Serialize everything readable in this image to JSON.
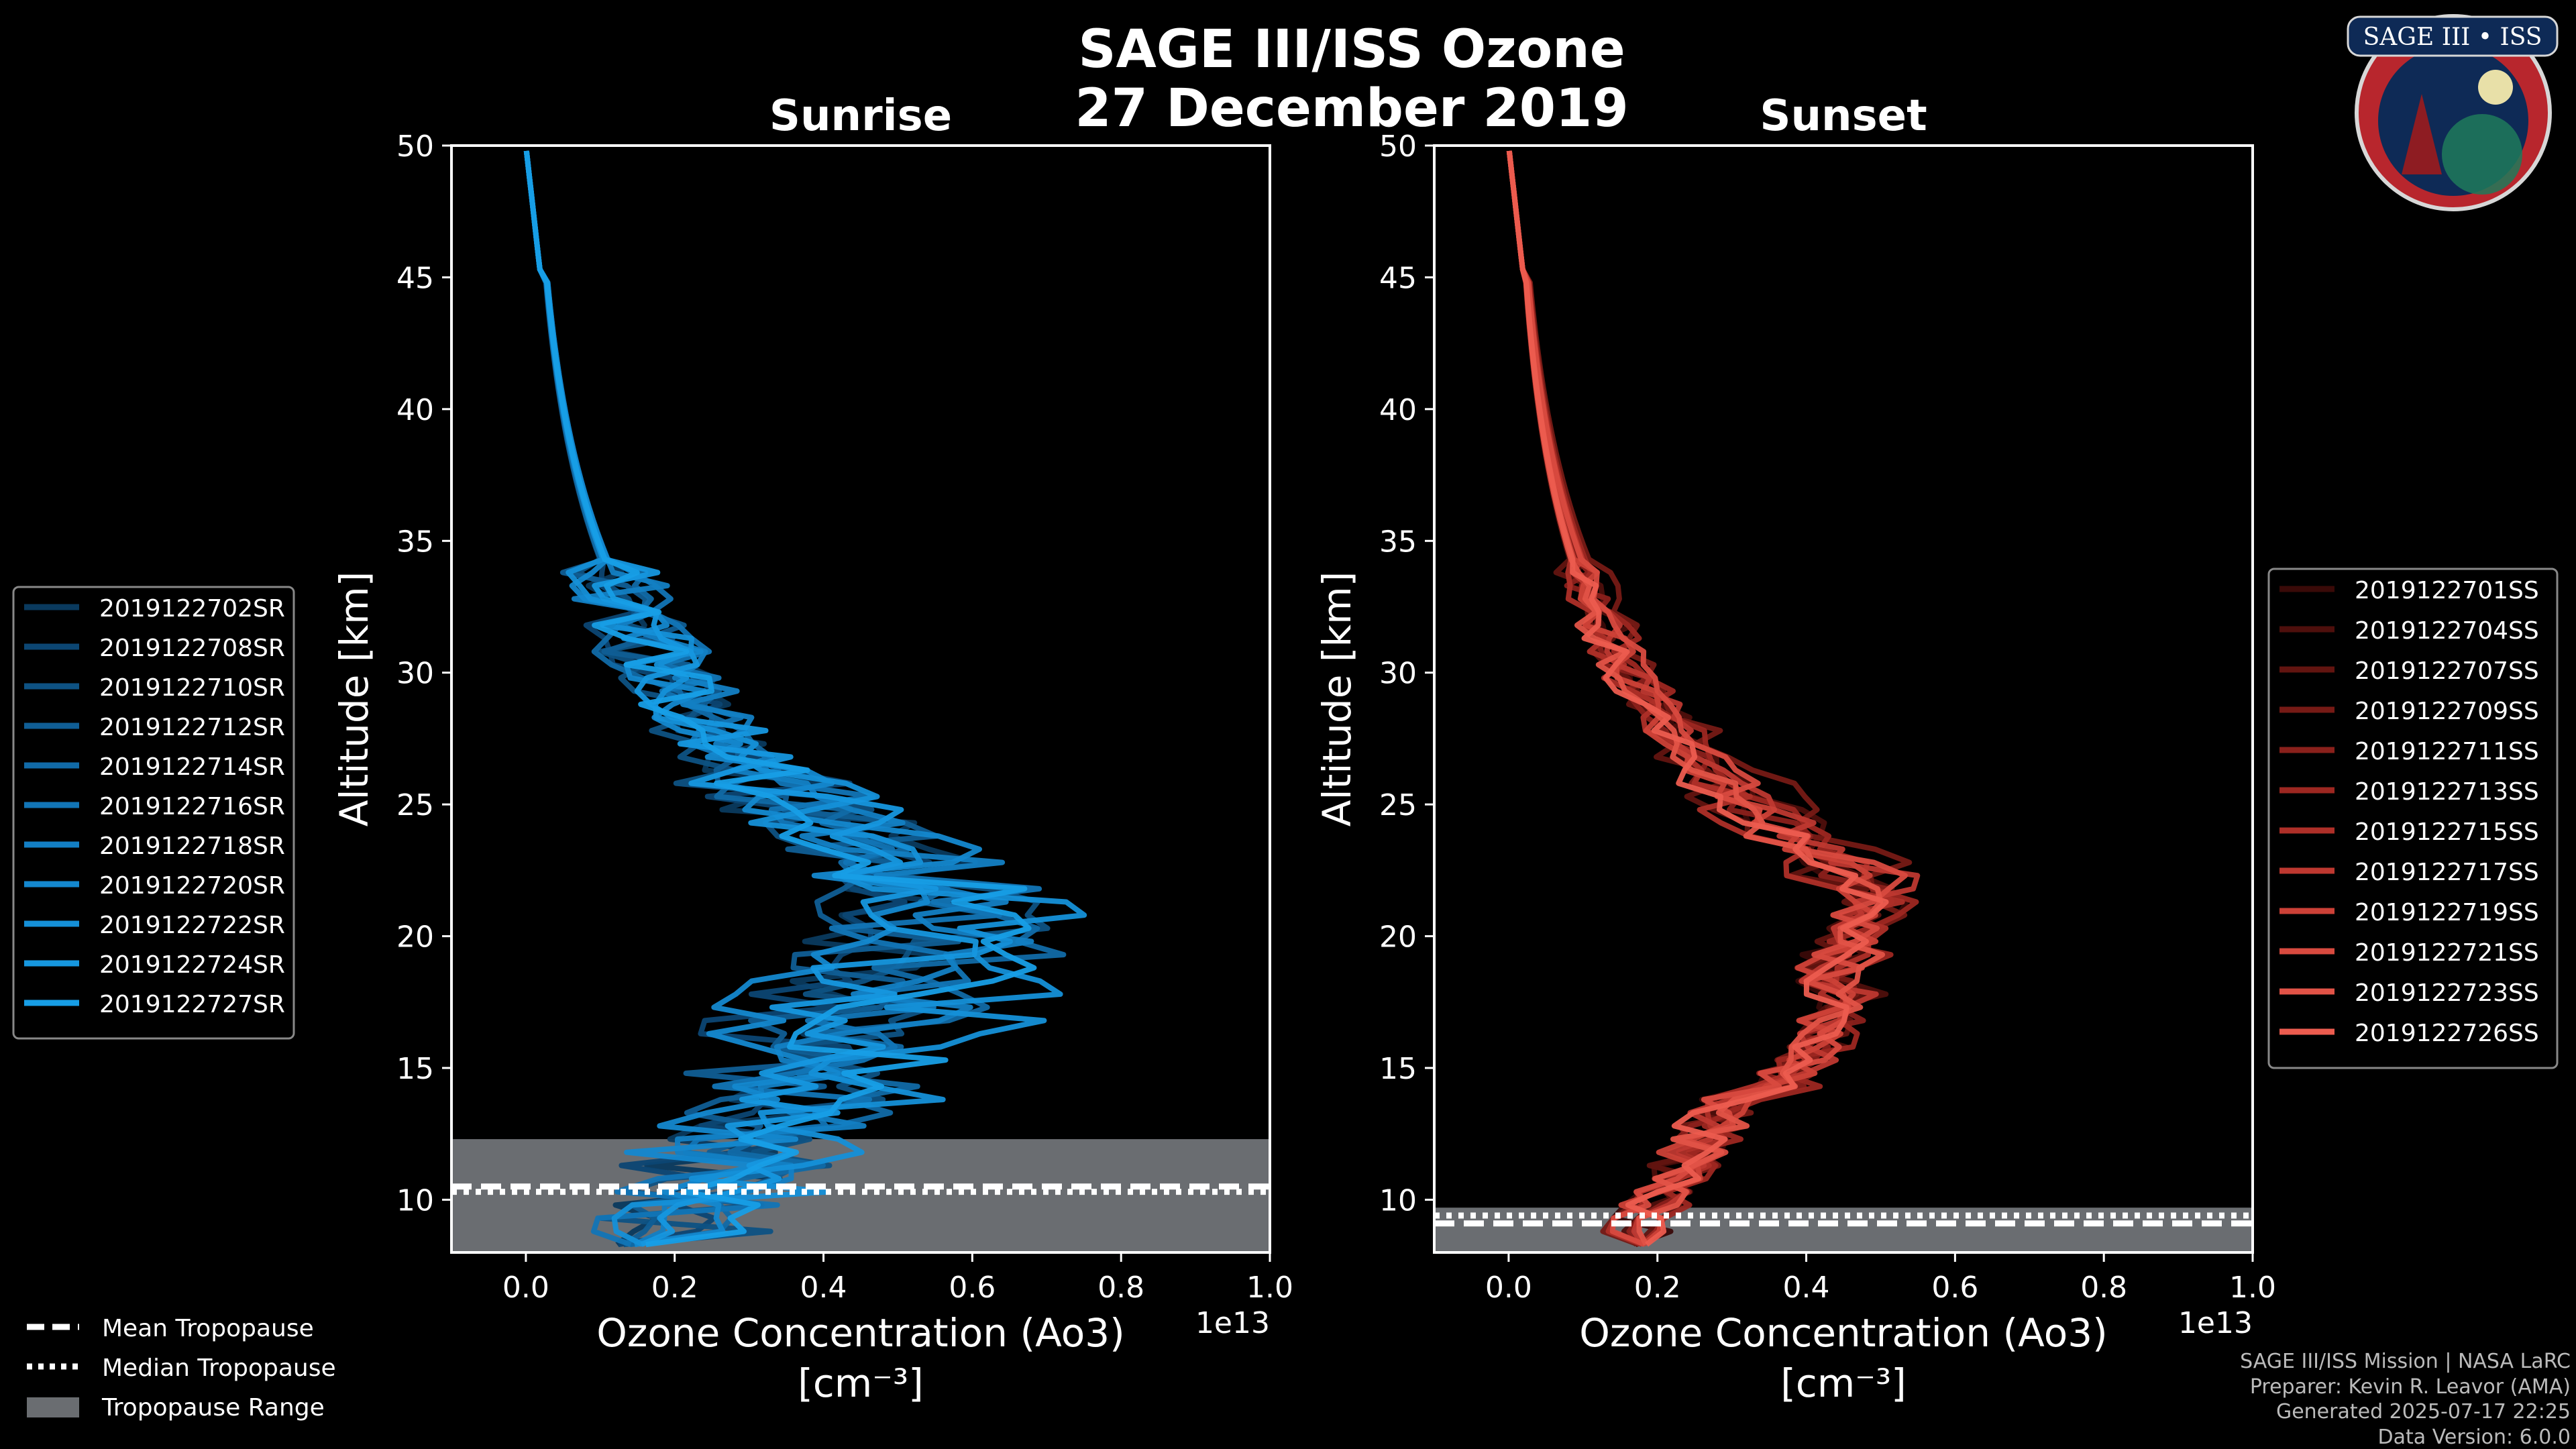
{
  "chart_data": {
    "type": "line",
    "title": "SAGE III/ISS Ozone",
    "date_label": "27 December 2019",
    "panels": [
      {
        "subtitle": "Sunrise",
        "xlabel": "Ozone Concentration (Ao3)",
        "xunit": "[cm⁻³]",
        "offset_label": "1e13",
        "ylabel": "Altitude [km]",
        "xlim": [
          -0.1,
          1.0
        ],
        "ylim": [
          8,
          50
        ],
        "xticks": [
          "0.0",
          "0.2",
          "0.4",
          "0.6",
          "0.8",
          "1.0"
        ],
        "yticks": [
          "10",
          "15",
          "20",
          "25",
          "30",
          "35",
          "40",
          "45",
          "50"
        ],
        "tropopause": {
          "mean": 10.5,
          "median": 10.3,
          "range": [
            8,
            12.3
          ]
        },
        "series": [
          {
            "name": "2019122702SR",
            "color": "#0a3a5e",
            "peak_alt": 22,
            "peak_val": 0.55
          },
          {
            "name": "2019122708SR",
            "color": "#0c4673",
            "peak_alt": 23,
            "peak_val": 0.48
          },
          {
            "name": "2019122710SR",
            "color": "#0e5283",
            "peak_alt": 21,
            "peak_val": 0.6
          },
          {
            "name": "2019122712SR",
            "color": "#105e95",
            "peak_alt": 22.5,
            "peak_val": 0.52
          },
          {
            "name": "2019122714SR",
            "color": "#116aa7",
            "peak_alt": 20.5,
            "peak_val": 0.65
          },
          {
            "name": "2019122716SR",
            "color": "#1275b6",
            "peak_alt": 22,
            "peak_val": 0.58
          },
          {
            "name": "2019122718SR",
            "color": "#137fc4",
            "peak_alt": 21.5,
            "peak_val": 0.62
          },
          {
            "name": "2019122720SR",
            "color": "#1488cf",
            "peak_alt": 23,
            "peak_val": 0.5
          },
          {
            "name": "2019122722SR",
            "color": "#1590d8",
            "peak_alt": 20,
            "peak_val": 0.72
          },
          {
            "name": "2019122724SR",
            "color": "#1697df",
            "peak_alt": 22,
            "peak_val": 0.56
          },
          {
            "name": "2019122727SR",
            "color": "#179ee6",
            "peak_alt": 21,
            "peak_val": 0.64
          }
        ]
      },
      {
        "subtitle": "Sunset",
        "xlabel": "Ozone Concentration (Ao3)",
        "xunit": "[cm⁻³]",
        "offset_label": "1e13",
        "ylabel": "Altitude [km]",
        "xlim": [
          -0.1,
          1.0
        ],
        "ylim": [
          8,
          50
        ],
        "xticks": [
          "0.0",
          "0.2",
          "0.4",
          "0.6",
          "0.8",
          "1.0"
        ],
        "yticks": [
          "10",
          "15",
          "20",
          "25",
          "30",
          "35",
          "40",
          "45",
          "50"
        ],
        "tropopause": {
          "mean": 9.1,
          "median": 9.4,
          "range": [
            8,
            9.7
          ]
        },
        "series": [
          {
            "name": "2019122701SS",
            "color": "#3a0a08",
            "peak_alt": 21.5,
            "peak_val": 0.5
          },
          {
            "name": "2019122704SS",
            "color": "#4e0f0c",
            "peak_alt": 22,
            "peak_val": 0.52
          },
          {
            "name": "2019122707SS",
            "color": "#621410",
            "peak_alt": 21,
            "peak_val": 0.49
          },
          {
            "name": "2019122709SS",
            "color": "#761a15",
            "peak_alt": 22.5,
            "peak_val": 0.53
          },
          {
            "name": "2019122711SS",
            "color": "#8a201b",
            "peak_alt": 21.5,
            "peak_val": 0.51
          },
          {
            "name": "2019122713SS",
            "color": "#9d2721",
            "peak_alt": 22,
            "peak_val": 0.54
          },
          {
            "name": "2019122715SS",
            "color": "#ae2f28",
            "peak_alt": 21,
            "peak_val": 0.5
          },
          {
            "name": "2019122717SS",
            "color": "#be3830",
            "peak_alt": 22,
            "peak_val": 0.52
          },
          {
            "name": "2019122719SS",
            "color": "#cc4137",
            "peak_alt": 21.5,
            "peak_val": 0.49
          },
          {
            "name": "2019122721SS",
            "color": "#d84a3f",
            "peak_alt": 22,
            "peak_val": 0.51
          },
          {
            "name": "2019122723SS",
            "color": "#e25347",
            "peak_alt": 21,
            "peak_val": 0.5
          },
          {
            "name": "2019122726SS",
            "color": "#ec5c4f",
            "peak_alt": 21.5,
            "peak_val": 0.48
          }
        ]
      }
    ],
    "tropopause_legend": [
      "Mean Tropopause",
      "Median Tropopause",
      "Tropopause Range"
    ]
  },
  "logo": {
    "text": "SAGE III • ISS"
  },
  "credits": [
    "SAGE III/ISS Mission | NASA LaRC",
    "Preparer: Kevin R. Leavor (AMA)",
    "Generated 2025-07-17 22:25",
    "Data Version: 6.0.0"
  ],
  "colors": {
    "background": "#000000",
    "axes": "#ffffff",
    "tropopause_fill": "#6a6d71"
  }
}
